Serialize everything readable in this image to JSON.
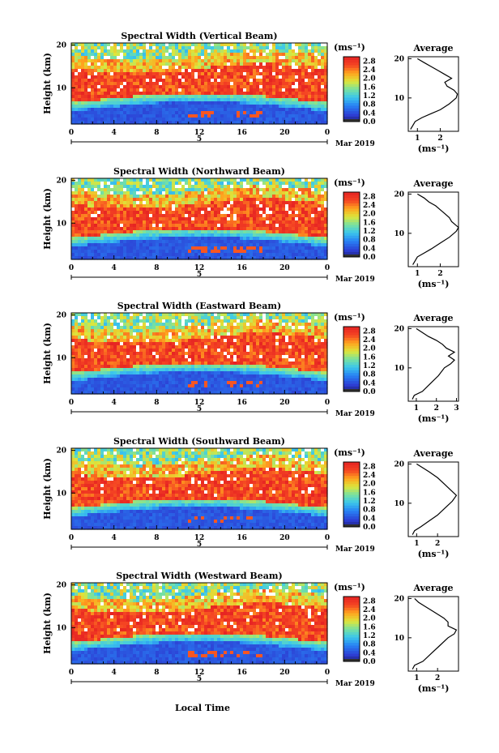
{
  "figure": {
    "xlabel": "Local Time",
    "date_label": "Mar 2019",
    "day_label": "5",
    "colorbar_unit": "(ms⁻¹)",
    "average_title": "Average",
    "average_xlabel": "(ms⁻¹)"
  },
  "chart_data": [
    {
      "type": "heatmap",
      "title": "Spectral Width (Vertical Beam)",
      "ylabel": "Height (km)",
      "xticks": [
        "0",
        "4",
        "8",
        "12",
        "16",
        "20",
        "0"
      ],
      "yticks": [
        "10",
        "20"
      ],
      "xlim": [
        0,
        24
      ],
      "ylim": [
        1.5,
        20.5
      ],
      "colorbar": {
        "ticks": [
          "0.0",
          "0.4",
          "0.8",
          "1.2",
          "1.6",
          "2.0",
          "2.4",
          "2.8"
        ],
        "range": [
          0,
          3.0
        ]
      },
      "average_profile": {
        "xticks": [
          "1",
          "2"
        ],
        "xlim": [
          0.6,
          2.8
        ],
        "yticks": [
          "10",
          "20"
        ],
        "points": [
          [
            0.7,
            2
          ],
          [
            0.9,
            4
          ],
          [
            1.2,
            5
          ],
          [
            1.6,
            6
          ],
          [
            2.0,
            7
          ],
          [
            2.4,
            8.5
          ],
          [
            2.7,
            10
          ],
          [
            2.75,
            11
          ],
          [
            2.6,
            12
          ],
          [
            2.3,
            13
          ],
          [
            2.2,
            14
          ],
          [
            2.5,
            15
          ],
          [
            2.2,
            16
          ],
          [
            1.9,
            17
          ],
          [
            1.6,
            18
          ],
          [
            1.3,
            19
          ],
          [
            1.0,
            20
          ]
        ]
      }
    },
    {
      "type": "heatmap",
      "title": "Spectral Width (Northward Beam)",
      "ylabel": "Height (km)",
      "xticks": [
        "0",
        "4",
        "8",
        "12",
        "16",
        "20",
        "0"
      ],
      "yticks": [
        "10",
        "20"
      ],
      "xlim": [
        0,
        24
      ],
      "ylim": [
        1.5,
        20.5
      ],
      "colorbar": {
        "ticks": [
          "0.0",
          "0.4",
          "0.8",
          "1.2",
          "1.6",
          "2.0",
          "2.4",
          "2.8"
        ],
        "range": [
          0,
          3.0
        ]
      },
      "average_profile": {
        "xticks": [
          "1",
          "2"
        ],
        "xlim": [
          0.6,
          2.8
        ],
        "yticks": [
          "10",
          "20"
        ],
        "points": [
          [
            0.8,
            2
          ],
          [
            0.9,
            3
          ],
          [
            1.0,
            4
          ],
          [
            1.3,
            5
          ],
          [
            1.6,
            6
          ],
          [
            2.0,
            7.5
          ],
          [
            2.4,
            9
          ],
          [
            2.7,
            10.5
          ],
          [
            2.8,
            11.5
          ],
          [
            2.5,
            13
          ],
          [
            2.4,
            14
          ],
          [
            2.2,
            15
          ],
          [
            2.0,
            16
          ],
          [
            1.8,
            17
          ],
          [
            1.5,
            18
          ],
          [
            1.3,
            19
          ],
          [
            1.0,
            20
          ]
        ]
      }
    },
    {
      "type": "heatmap",
      "title": "Spectral Width (Eastward Beam)",
      "ylabel": "Height (km)",
      "xticks": [
        "0",
        "4",
        "8",
        "12",
        "16",
        "20",
        "0"
      ],
      "yticks": [
        "10",
        "20"
      ],
      "xlim": [
        0,
        24
      ],
      "ylim": [
        1.5,
        20.5
      ],
      "colorbar": {
        "ticks": [
          "0.0",
          "0.4",
          "0.8",
          "1.2",
          "1.6",
          "2.0",
          "2.4",
          "2.8"
        ],
        "range": [
          0,
          3.0
        ]
      },
      "average_profile": {
        "xticks": [
          "1",
          "2",
          "3"
        ],
        "xlim": [
          0.6,
          3.1
        ],
        "yticks": [
          "10",
          "20"
        ],
        "points": [
          [
            0.8,
            2
          ],
          [
            0.9,
            3
          ],
          [
            1.3,
            4
          ],
          [
            1.7,
            6
          ],
          [
            2.1,
            8
          ],
          [
            2.4,
            10
          ],
          [
            2.7,
            11
          ],
          [
            2.9,
            12
          ],
          [
            2.6,
            13
          ],
          [
            2.9,
            14
          ],
          [
            2.5,
            15
          ],
          [
            2.3,
            16
          ],
          [
            2.0,
            17
          ],
          [
            1.6,
            18
          ],
          [
            1.3,
            19
          ],
          [
            1.0,
            20
          ]
        ]
      }
    },
    {
      "type": "heatmap",
      "title": "Spectral Width (Southward Beam)",
      "ylabel": "Height (km)",
      "xticks": [
        "0",
        "4",
        "8",
        "12",
        "16",
        "20",
        "0"
      ],
      "yticks": [
        "10",
        "20"
      ],
      "xlim": [
        0,
        24
      ],
      "ylim": [
        1.5,
        20.5
      ],
      "colorbar": {
        "ticks": [
          "0.0",
          "0.4",
          "0.8",
          "1.2",
          "1.6",
          "2.0",
          "2.4",
          "2.8"
        ],
        "range": [
          0,
          3.0
        ]
      },
      "average_profile": {
        "xticks": [
          "1",
          "2"
        ],
        "xlim": [
          0.6,
          3.0
        ],
        "yticks": [
          "10",
          "20"
        ],
        "points": [
          [
            0.8,
            2
          ],
          [
            0.9,
            3
          ],
          [
            1.2,
            4
          ],
          [
            1.6,
            5.5
          ],
          [
            2.0,
            7
          ],
          [
            2.4,
            9
          ],
          [
            2.7,
            10.5
          ],
          [
            2.9,
            12
          ],
          [
            2.6,
            13.5
          ],
          [
            2.3,
            15
          ],
          [
            2.0,
            16.5
          ],
          [
            1.6,
            18
          ],
          [
            1.3,
            19
          ],
          [
            1.0,
            20
          ]
        ]
      }
    },
    {
      "type": "heatmap",
      "title": "Spectral Width (Westward Beam)",
      "ylabel": "Height (km)",
      "xticks": [
        "0",
        "4",
        "8",
        "12",
        "16",
        "20",
        "0"
      ],
      "yticks": [
        "10",
        "20"
      ],
      "xlim": [
        0,
        24
      ],
      "ylim": [
        1.5,
        20.5
      ],
      "colorbar": {
        "ticks": [
          "0.0",
          "0.4",
          "0.8",
          "1.2",
          "1.6",
          "2.0",
          "2.4",
          "2.8"
        ],
        "range": [
          0,
          3.0
        ]
      },
      "average_profile": {
        "xticks": [
          "1",
          "2"
        ],
        "xlim": [
          0.6,
          3.0
        ],
        "yticks": [
          "10",
          "20"
        ],
        "points": [
          [
            0.8,
            2
          ],
          [
            0.9,
            3
          ],
          [
            1.3,
            4
          ],
          [
            1.7,
            6
          ],
          [
            2.1,
            8
          ],
          [
            2.5,
            10
          ],
          [
            2.8,
            11
          ],
          [
            2.9,
            12
          ],
          [
            2.5,
            13
          ],
          [
            2.5,
            14
          ],
          [
            2.3,
            15
          ],
          [
            2.0,
            16
          ],
          [
            1.7,
            17
          ],
          [
            1.4,
            18
          ],
          [
            1.1,
            19
          ],
          [
            0.9,
            20
          ]
        ]
      }
    }
  ]
}
